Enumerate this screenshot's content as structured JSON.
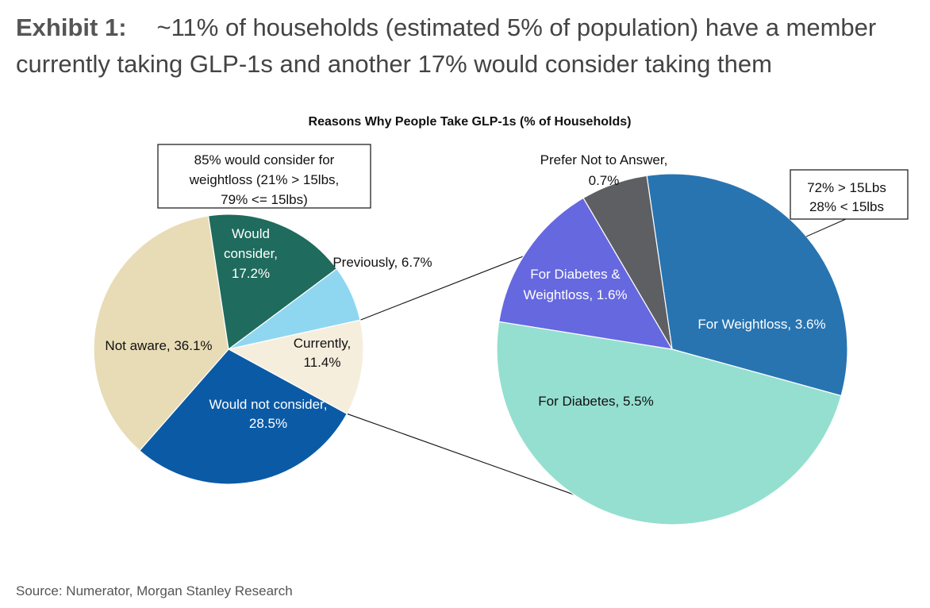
{
  "heading": {
    "label": "Exhibit 1:",
    "text": "~11% of households (estimated 5% of population) have a member currently taking GLP-1s and another 17% would consider taking them"
  },
  "source": "Source: Numerator, Morgan Stanley Research",
  "chart_data": {
    "type": "pie",
    "title": "Reasons Why People Take GLP-1s (% of Households)",
    "pies": [
      {
        "name": "households",
        "start": "Previously",
        "slices": [
          {
            "label": "Previously",
            "value": 6.7,
            "text": "Previously, 6.7%",
            "color": "#8fd6f1"
          },
          {
            "label": "Currently",
            "value": 11.4,
            "text": [
              "Currently,",
              "11.4%"
            ],
            "color": "#f6eedc"
          },
          {
            "label": "Would not consider",
            "value": 28.5,
            "text": [
              "Would not consider,",
              "28.5%"
            ],
            "color": "#0b5aa6"
          },
          {
            "label": "Not aware",
            "value": 36.1,
            "text": [
              "Not aware, 36.1%"
            ],
            "color": "#e8dcb6"
          },
          {
            "label": "Would consider",
            "value": 17.2,
            "text": [
              "Would",
              "consider,",
              "17.2%"
            ],
            "color": "#1f6b5d"
          }
        ]
      },
      {
        "name": "currently-breakdown",
        "slices": [
          {
            "label": "For Weightloss",
            "value": 3.6,
            "text": [
              "For Weightloss, 3.6%"
            ],
            "color": "#2874b1"
          },
          {
            "label": "For Diabetes",
            "value": 5.5,
            "text": [
              "For Diabetes, 5.5%"
            ],
            "color": "#95dfd0"
          },
          {
            "label": "For Diabetes & Weightloss",
            "value": 1.6,
            "text": [
              "For Diabetes &",
              "Weightloss, 1.6%"
            ],
            "color": "#6668e0"
          },
          {
            "label": "Prefer Not to Answer",
            "value": 0.7,
            "text": [
              "Prefer Not to Answer,",
              "0.7%"
            ],
            "color": "#5e5f63"
          }
        ]
      }
    ],
    "annotations": [
      {
        "name": "consider-callout",
        "lines": [
          "85% would consider for",
          "weightloss (21% > 15lbs,",
          "79% <= 15lbs)"
        ]
      },
      {
        "name": "weightloss-callout",
        "lines": [
          "72% > 15Lbs",
          "28% < 15lbs"
        ]
      }
    ]
  }
}
